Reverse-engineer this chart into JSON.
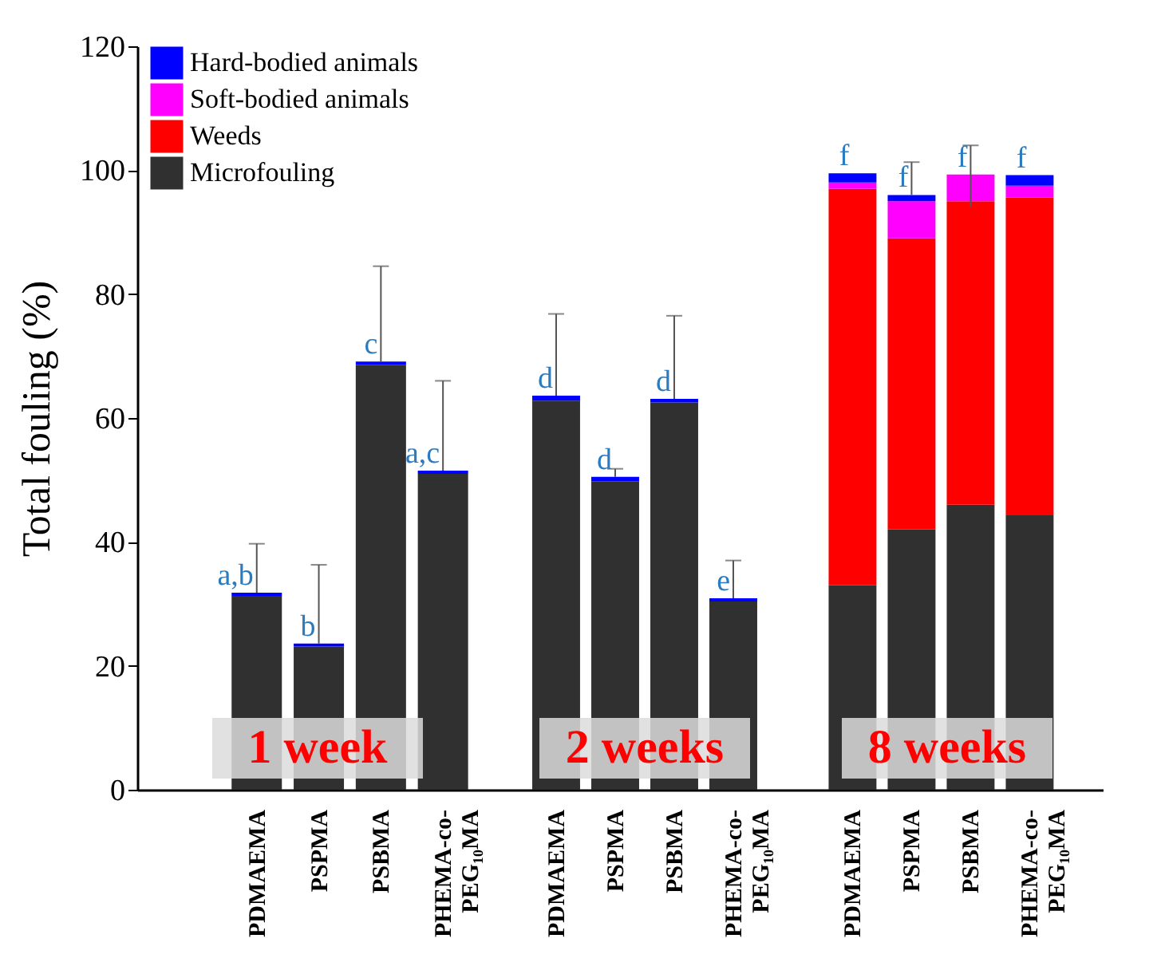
{
  "chart_data": [
    {
      "type": "bar",
      "stacked": true,
      "ylabel": "Total fouling (%)",
      "ylim": [
        0,
        120
      ],
      "yticks": [
        0,
        20,
        40,
        60,
        80,
        100,
        120
      ],
      "legend": "top left",
      "categories": [
        "PDMAEMA",
        "PSPMA",
        "PSBMA",
        "PHEMA-co-\nPEG₁₀MA"
      ],
      "series": [
        {
          "name": "Microfouling",
          "color": "#303030",
          "values": [
            31.3,
            23.1,
            68.6,
            51.0
          ]
        },
        {
          "name": "Weeds",
          "color": "#ff0000",
          "values": [
            null,
            null,
            null,
            null
          ]
        },
        {
          "name": "Soft-bodied animals",
          "color": "#ff00ff",
          "values": [
            null,
            null,
            null,
            null
          ]
        },
        {
          "name": "Hard-bodied animals",
          "color": "#0000ff",
          "values": [
            0.5,
            0.5,
            0.5,
            0.5
          ],
          "errors": [
            [
              31.8,
              39.7
            ],
            [
              23.6,
              36.3
            ],
            [
              69.1,
              84.5
            ],
            [
              51.5,
              66
            ]
          ]
        }
      ],
      "annotations": [
        {
          "text": "a,b",
          "x": "PDMAEMA",
          "y": 31.8
        },
        {
          "text": "b",
          "x": "PSPMA",
          "y": 23.6
        },
        {
          "text": "c",
          "x": "PSBMA",
          "y": 69.1
        },
        {
          "text": "a,c",
          "x": "PHEMA-co-\nPEG₁₀MA",
          "y": 51.5
        },
        "1 week"
      ]
    },
    {
      "type": "bar",
      "stacked": true,
      "ylim": [
        0,
        120
      ],
      "yticks": [
        0,
        20,
        40,
        60,
        80,
        100,
        120
      ],
      "tick_labels": "x",
      "categories": [
        "PDMAEMA",
        "PSPMA",
        "PSBMA",
        "PHEMA-co-\nPEG₁₀MA"
      ],
      "series": [
        {
          "color": "#303030",
          "values": [
            62.8,
            49.8,
            62.5,
            30.4
          ]
        },
        {
          "color": "#0000ff",
          "values": [
            0.8,
            0.7,
            0.6,
            0.5
          ],
          "errors": [
            [
              63.6,
              76.8
            ],
            [
              50.5,
              51.8
            ],
            [
              63.1,
              76.5
            ],
            [
              30.9,
              37
            ]
          ]
        }
      ],
      "annotations": [
        {
          "text": "d",
          "x": "PDMAEMA",
          "y": 63.6
        },
        {
          "text": "d",
          "x": "PSPMA",
          "y": 50.5
        },
        {
          "text": "d",
          "x": "PSBMA",
          "y": 63.1
        },
        {
          "text": "e",
          "x": "PHEMA-co-\nPEG₁₀MA",
          "y": 30.9
        },
        "2 weeks"
      ]
    },
    {
      "type": "bar",
      "stacked": true,
      "ylim": [
        0,
        120
      ],
      "yticks": [
        0,
        20,
        40,
        60,
        80,
        100,
        120
      ],
      "tick_labels": "x",
      "categories": [
        "PDMAEMA",
        "PSPMA",
        "PSBMA",
        "PHEMA-co-\nPEG₁₀MA"
      ],
      "series": [
        {
          "color": "#303030",
          "values": [
            33,
            42,
            46,
            44.3
          ]
        },
        {
          "color": "#ff0000",
          "values": [
            64,
            47,
            49,
            51.3
          ]
        },
        {
          "color": "#ff00ff",
          "values": [
            1,
            6,
            4.3,
            1.9
          ],
          "errors": [
            null,
            null,
            [
              94,
              104
            ],
            null
          ]
        },
        {
          "color": "#0000ff",
          "values": [
            1.5,
            1,
            null,
            1.7
          ],
          "errors": [
            null,
            [
              96,
              101.3
            ],
            null,
            null
          ]
        }
      ],
      "annotations": [
        {
          "text": "f",
          "x": "PDMAEMA",
          "y": 99.5
        },
        {
          "text": "f",
          "x": "PSPMA",
          "y": 96
        },
        {
          "text": "f",
          "x": "PSBMA",
          "y": 99.3
        },
        {
          "text": "f",
          "x": "PHEMA-co-\nPEG₁₀MA",
          "y": 99.2
        },
        "8 weeks"
      ]
    }
  ]
}
